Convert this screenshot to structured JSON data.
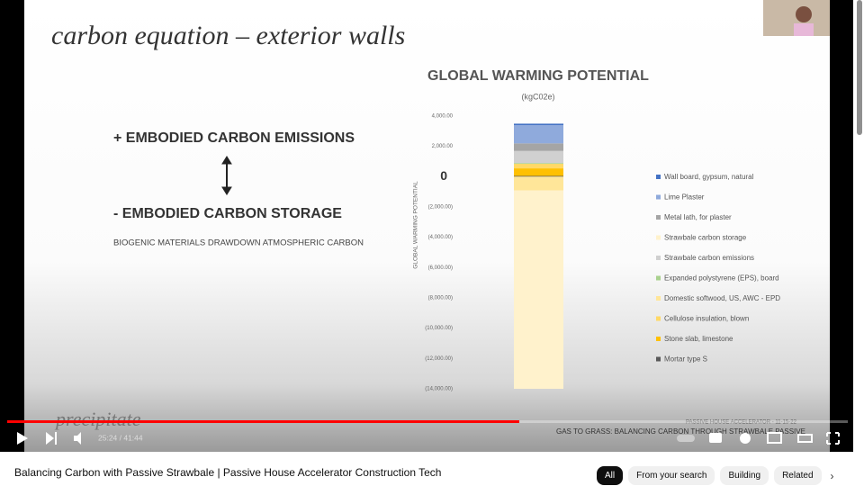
{
  "slide": {
    "heading": "carbon equation – exterior walls",
    "lines": [
      "+ EMBODIED CARBON  EMISSIONS",
      "- EMBODIED CARBON  STORAGE"
    ],
    "note": "BIOGENIC MATERIALS DRAWDOWN ATMOSPHERIC CARBON",
    "logo": "precipitate",
    "footer": [
      "PASSIVE HOUSE ACCELERATOR - 11-15-22",
      "GAS TO GRASS: BALANCING CARBON THROUGH STRAWBALE PASSIVE"
    ]
  },
  "chart_data": {
    "type": "bar",
    "stacked": true,
    "title": "GLOBAL WARMING POTENTIAL",
    "subtitle": "(kgC02e)",
    "y_label": "GLOBAL WARMING POTENTIAL",
    "categories": [
      null
    ],
    "series": [
      {
        "name": "Wall board, gypsum, natural",
        "color": "#4472c4",
        "values": [
          100
        ]
      },
      {
        "name": "Lime Plaster",
        "color": "#8faadc",
        "values": [
          1200
        ]
      },
      {
        "name": "Metal lath, for plaster",
        "color": "#a5a5a5",
        "values": [
          500
        ]
      },
      {
        "name": "Strawbale carbon storage",
        "color": "#fff2cc",
        "values": [
          -13100
        ]
      },
      {
        "name": "Strawbale carbon emissions",
        "color": "#d0d0d0",
        "values": [
          800
        ]
      },
      {
        "name": "Expanded polystyrene (EPS), board",
        "color": "#a9d18e",
        "values": [
          50
        ]
      },
      {
        "name": "Domestic softwood, US, AWC - EPD",
        "color": "#ffe699",
        "values": [
          -900
        ]
      },
      {
        "name": "Cellulose insulation, blown",
        "color": "#ffd966",
        "values": [
          300
        ]
      },
      {
        "name": "Stone slab, limestone",
        "color": "#ffc000",
        "values": [
          500
        ]
      },
      {
        "name": "Mortar type S",
        "color": "#595959",
        "values": [
          50
        ]
      }
    ],
    "ylim": [
      -14000,
      4000
    ],
    "yticks": [
      {
        "value": 4000,
        "label": "4,000.00"
      },
      {
        "value": 2000,
        "label": "2,000.00"
      },
      0,
      {
        "value": -2000,
        "label": "(2,000.00)"
      },
      {
        "value": -4000,
        "label": "(4,000.00)"
      },
      {
        "value": -6000,
        "label": "(6,000.00)"
      },
      {
        "value": -8000,
        "label": "(8,000.00)"
      },
      {
        "value": -10000,
        "label": "(10,000.00)"
      },
      {
        "value": -12000,
        "label": "(12,000.00)"
      },
      {
        "value": -14000,
        "label": "(14,000.00)"
      }
    ],
    "grid": false
  },
  "player": {
    "time": "25:24 / 41:44"
  },
  "video_title": "Balancing Carbon with Passive Strawbale | Passive House Accelerator Construction Tech",
  "chips": [
    "All",
    "From your search",
    "Building",
    "Related"
  ]
}
